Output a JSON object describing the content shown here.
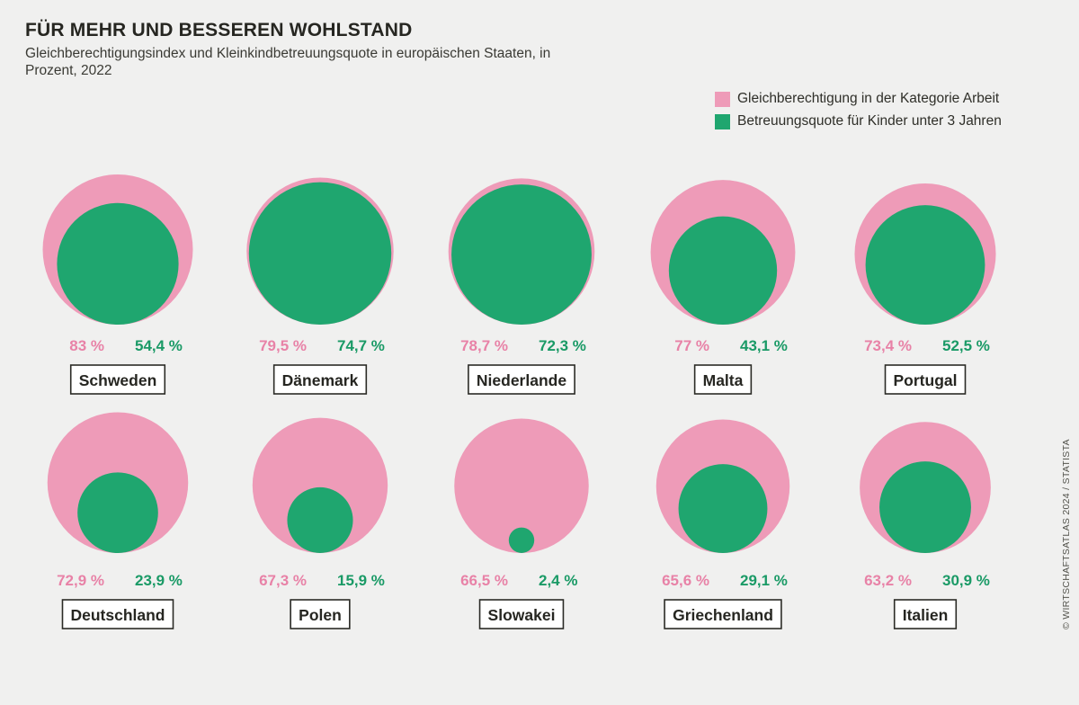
{
  "title": "FÜR MEHR UND BESSEREN WOHLSTAND",
  "subtitle": "Gleichberechtigungsindex und Kleinkindbetreuungsquote in europäischen Staaten, in Prozent, 2022",
  "credit": "© WIRTSCHAFTSATLAS 2024 / STATISTA",
  "colors": {
    "pink": "#ee9bb8",
    "green": "#1fa66f",
    "pink_text": "#e882a7",
    "green_text": "#1a9a66",
    "box_border": "#2b2b26"
  },
  "legend": [
    {
      "label": "Gleichberechtigung in der Kategorie Arbeit",
      "color": "#ee9bb8"
    },
    {
      "label": "Betreuungsquote für Kinder unter 3 Jahren",
      "color": "#1fa66f"
    }
  ],
  "chart_data": {
    "type": "nested-bubble",
    "series": [
      {
        "name": "Gleichberechtigung in der Kategorie Arbeit",
        "color": "#ee9bb8"
      },
      {
        "name": "Betreuungsquote für Kinder unter 3 Jahren",
        "color": "#1fa66f"
      }
    ],
    "countries": [
      {
        "name": "Schweden",
        "gleichberechtigung": 83.0,
        "betreuung": 54.4,
        "gleich_label": "83 %",
        "betreu_label": "54,4 %"
      },
      {
        "name": "Dänemark",
        "gleichberechtigung": 79.5,
        "betreuung": 74.7,
        "gleich_label": "79,5 %",
        "betreu_label": "74,7 %"
      },
      {
        "name": "Niederlande",
        "gleichberechtigung": 78.7,
        "betreuung": 72.3,
        "gleich_label": "78,7 %",
        "betreu_label": "72,3 %"
      },
      {
        "name": "Malta",
        "gleichberechtigung": 77.0,
        "betreuung": 43.1,
        "gleich_label": "77 %",
        "betreu_label": "43,1 %"
      },
      {
        "name": "Portugal",
        "gleichberechtigung": 73.4,
        "betreuung": 52.5,
        "gleich_label": "73,4 %",
        "betreu_label": "52,5 %"
      },
      {
        "name": "Deutschland",
        "gleichberechtigung": 72.9,
        "betreuung": 23.9,
        "gleich_label": "72,9 %",
        "betreu_label": "23,9 %"
      },
      {
        "name": "Polen",
        "gleichberechtigung": 67.3,
        "betreuung": 15.9,
        "gleich_label": "67,3 %",
        "betreu_label": "15,9 %"
      },
      {
        "name": "Slowakei",
        "gleichberechtigung": 66.5,
        "betreuung": 2.4,
        "gleich_label": "66,5 %",
        "betreu_label": "2,4 %"
      },
      {
        "name": "Griechenland",
        "gleichberechtigung": 65.6,
        "betreuung": 29.1,
        "gleich_label": "65,6 %",
        "betreu_label": "29,1 %"
      },
      {
        "name": "Italien",
        "gleichberechtigung": 63.2,
        "betreuung": 30.9,
        "gleich_label": "63,2 %",
        "betreu_label": "30,9 %"
      }
    ]
  }
}
